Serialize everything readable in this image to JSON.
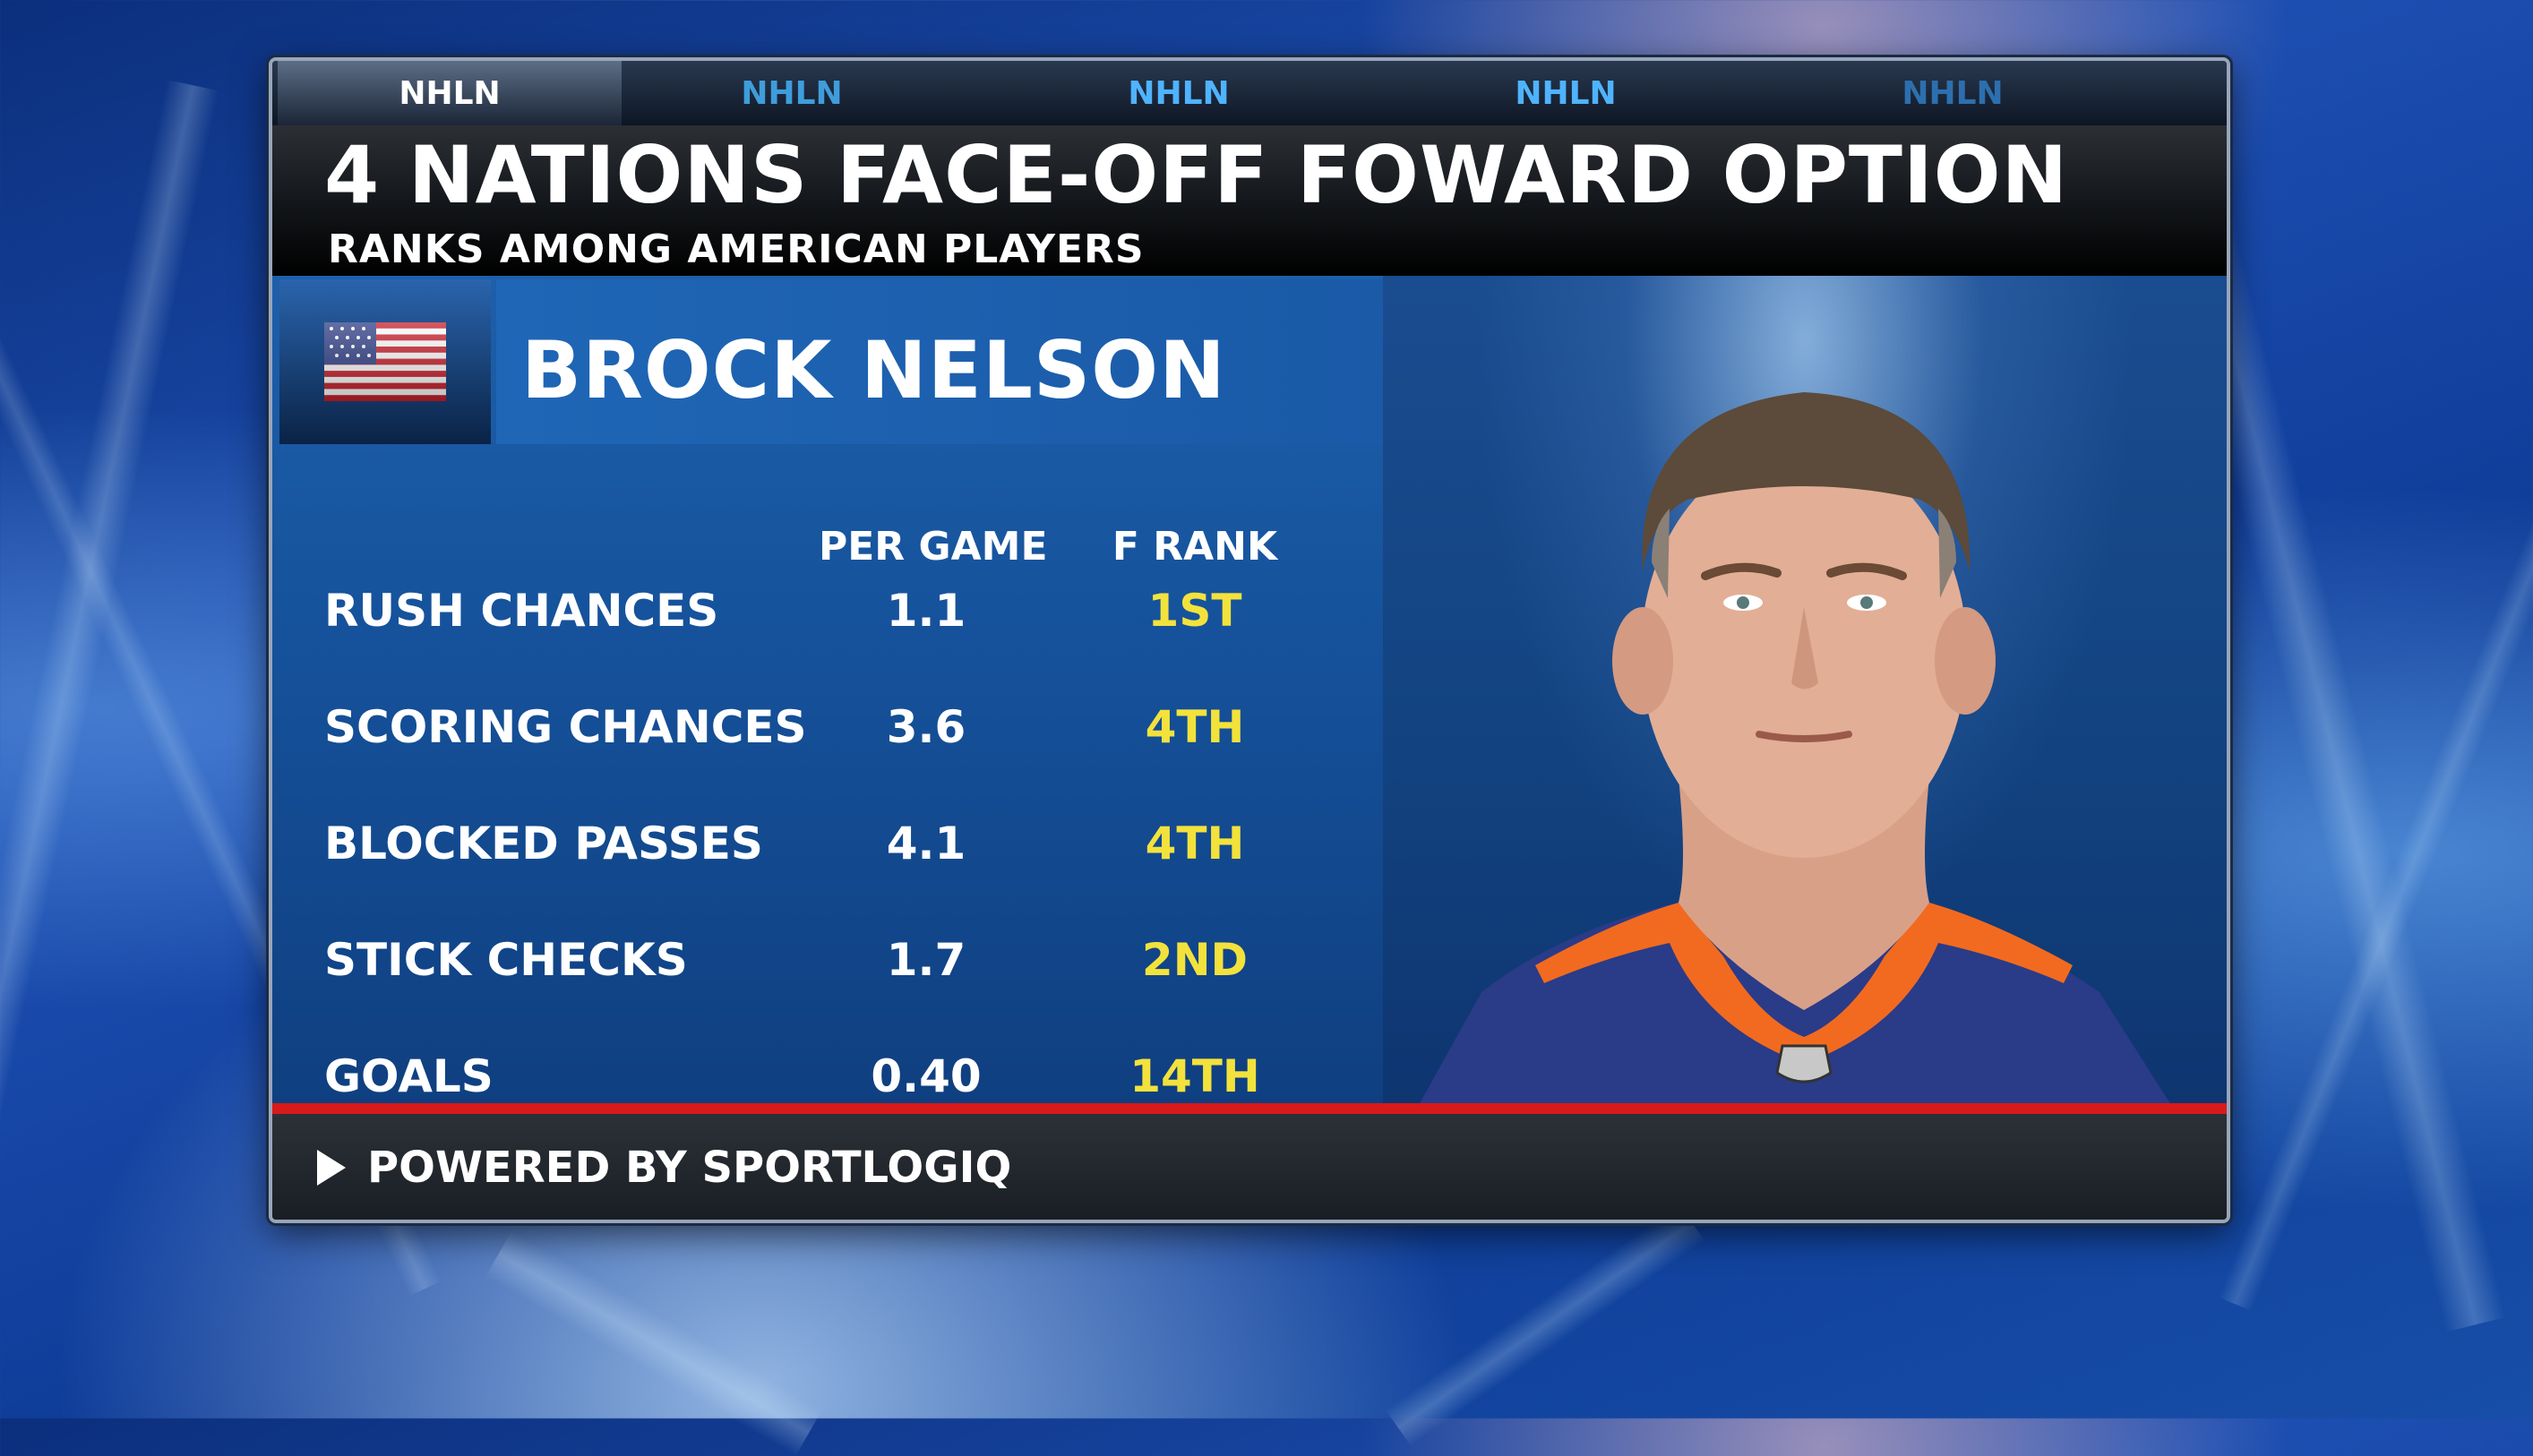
{
  "tabs": [
    {
      "label": "NHLN",
      "active": true
    },
    {
      "label": "NHLN",
      "active": false
    },
    {
      "label": "NHLN",
      "active": false
    },
    {
      "label": "NHLN",
      "active": false
    },
    {
      "label": "NHLN",
      "active": false
    }
  ],
  "header": {
    "title": "4 NATIONS FACE-OFF FOWARD OPTION",
    "subtitle": "RANKS AMONG AMERICAN PLAYERS"
  },
  "player": {
    "name": "BROCK NELSON",
    "flag_icon": "us-flag-icon"
  },
  "table": {
    "columns": [
      "PER GAME",
      "F RANK"
    ],
    "rows": [
      {
        "label": "RUSH CHANCES",
        "per_game": "1.1",
        "rank": "1ST"
      },
      {
        "label": "SCORING CHANCES",
        "per_game": "3.6",
        "rank": "4TH"
      },
      {
        "label": "BLOCKED PASSES",
        "per_game": "4.1",
        "rank": "4TH"
      },
      {
        "label": "STICK CHECKS",
        "per_game": "1.7",
        "rank": "2ND"
      },
      {
        "label": "GOALS",
        "per_game": "0.40",
        "rank": "14TH"
      }
    ]
  },
  "footer": {
    "text": "POWERED BY SPORTLOGIQ",
    "icon": "play-icon"
  },
  "colors": {
    "rank_yellow": "#f3e23c",
    "accent_red": "#d91a1a",
    "panel_blue": "#1a5aa7",
    "jersey_orange": "#f26a1f",
    "jersey_blue": "#2a3b88"
  }
}
